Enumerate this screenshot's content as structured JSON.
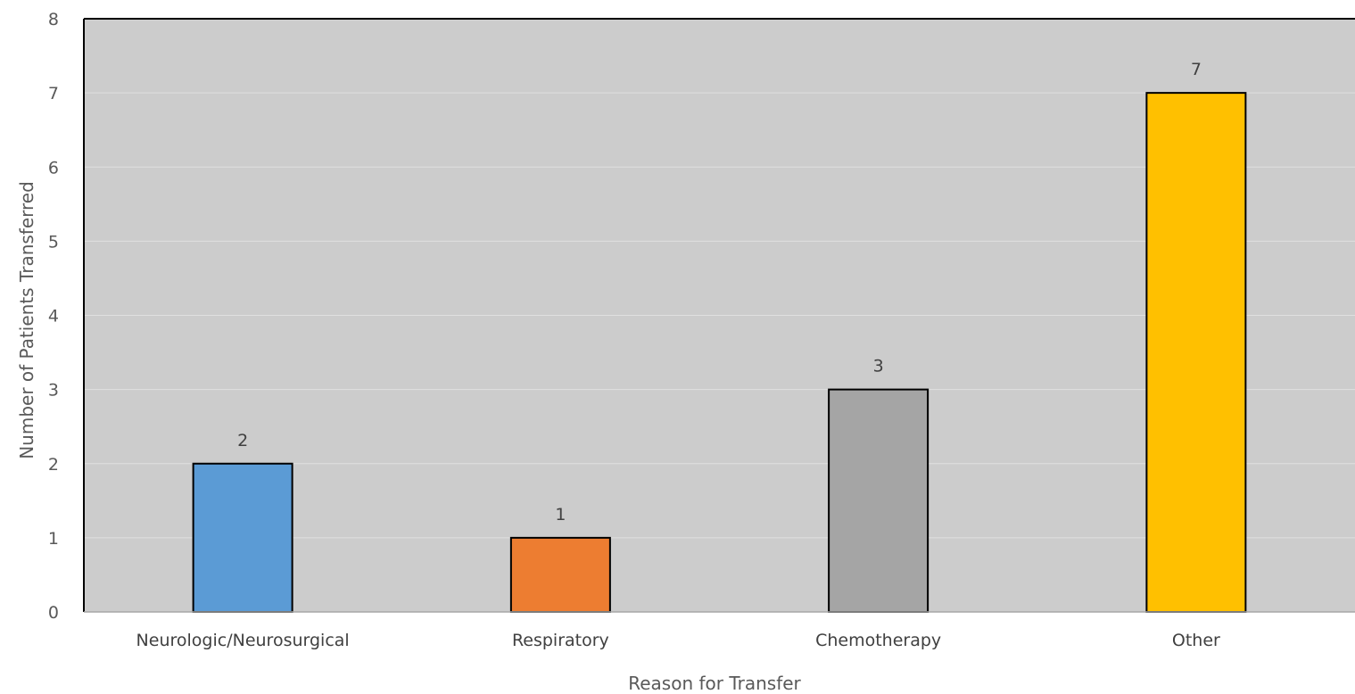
{
  "chart_data": {
    "type": "bar",
    "categories": [
      "Neurologic/Neurosurgical",
      "Respiratory",
      "Chemotherapy",
      "Other"
    ],
    "values": [
      2,
      1,
      3,
      7
    ],
    "colors": [
      "#5b9bd5",
      "#ed7d31",
      "#a5a5a5",
      "#ffc000"
    ],
    "data_labels": [
      "2",
      "1",
      "3",
      "7"
    ],
    "xlabel": "Reason for Transfer",
    "ylabel": "Number of Patients Transferred",
    "ylim": [
      0,
      8
    ],
    "yticks": [
      "0",
      "1",
      "2",
      "3",
      "4",
      "5",
      "6",
      "7",
      "8"
    ],
    "grid": true,
    "plot_background": "#cccccc",
    "gridline_color": "#e0e0e0"
  }
}
